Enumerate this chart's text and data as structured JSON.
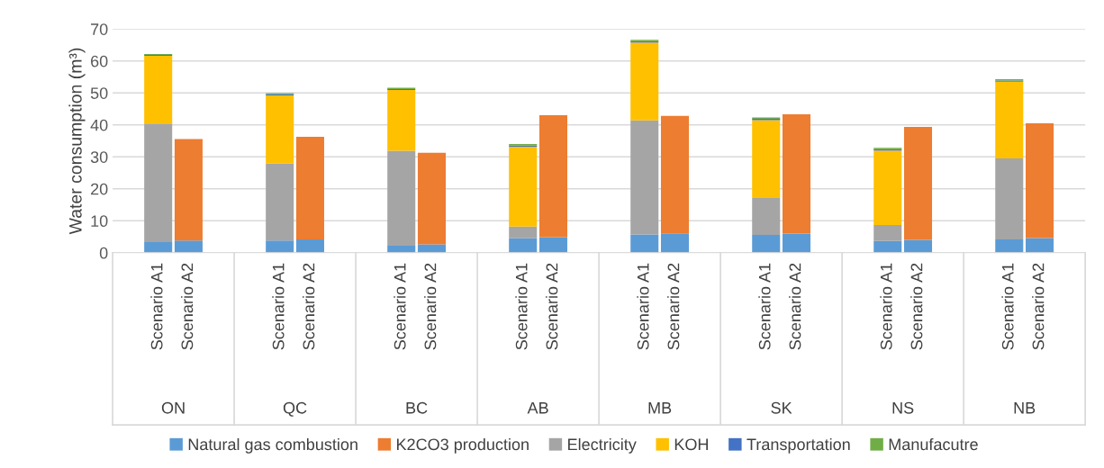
{
  "chart_data": {
    "type": "bar",
    "stacked": true,
    "ylabel": "Water consumption (m³)",
    "categories": [
      "Scenario A1",
      "Scenario A2",
      "Scenario A1",
      "Scenario A2",
      "Scenario A1",
      "Scenario A2",
      "Scenario A1",
      "Scenario A2",
      "Scenario A1",
      "Scenario A2",
      "Scenario A1",
      "Scenario A2",
      "Scenario A1",
      "Scenario A2",
      "Scenario A1",
      "Scenario A2"
    ],
    "annotations": [
      "ON",
      "QC",
      "BC",
      "AB",
      "MB",
      "SK",
      "NS",
      "NB"
    ],
    "series": [
      {
        "name": "Natural gas combustion",
        "color": "#5b9bd5",
        "values": [
          3.3,
          3.8,
          3.8,
          4.2,
          2.2,
          2.6,
          4.5,
          4.9,
          5.7,
          6.1,
          5.6,
          6.0,
          3.7,
          4.0,
          4.2,
          4.6
        ]
      },
      {
        "name": "K2CO3 production",
        "color": "#ed7d31",
        "values": [
          null,
          31.8,
          null,
          32.1,
          null,
          28.7,
          null,
          38.1,
          null,
          36.7,
          null,
          37.3,
          null,
          35.4,
          null,
          35.9
        ]
      },
      {
        "name": "Electricity",
        "color": "#a5a5a5",
        "values": [
          37.1,
          null,
          24.2,
          null,
          29.7,
          null,
          3.7,
          null,
          35.7,
          null,
          11.5,
          null,
          5.0,
          null,
          25.3,
          null
        ]
      },
      {
        "name": "KOH",
        "color": "#ffc000",
        "values": [
          21.2,
          null,
          21.2,
          null,
          19.0,
          null,
          25.0,
          null,
          24.4,
          null,
          24.4,
          null,
          23.3,
          null,
          24.0,
          null
        ]
      },
      {
        "name": "Transportation",
        "color": "#4472c4",
        "values": [
          0.3,
          null,
          0.4,
          null,
          0.3,
          null,
          0.4,
          null,
          0.4,
          null,
          0.4,
          null,
          0.4,
          null,
          0.4,
          null
        ]
      },
      {
        "name": "Manufacutre",
        "color": "#70ad47",
        "values": [
          0.3,
          null,
          0.3,
          null,
          0.4,
          null,
          0.4,
          null,
          0.4,
          null,
          0.4,
          null,
          0.4,
          null,
          0.4,
          null
        ]
      }
    ],
    "ylim": [
      0,
      70
    ],
    "yticks": [
      0,
      10,
      20,
      30,
      40,
      50,
      60,
      70
    ],
    "grid": "y",
    "legend": "bottom"
  }
}
